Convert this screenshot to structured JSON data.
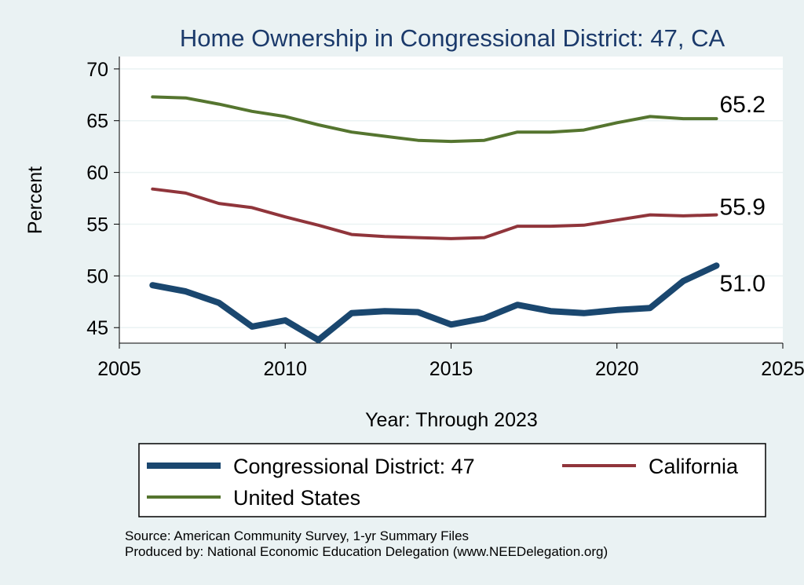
{
  "chart_data": {
    "type": "line",
    "title": "Home Ownership in Congressional District:  47, CA",
    "xlabel": "Year: Through 2023",
    "ylabel": "Percent",
    "xlim": [
      2005,
      2025
    ],
    "ylim": [
      43.5,
      71.2
    ],
    "xticks": [
      2005,
      2010,
      2015,
      2020,
      2025
    ],
    "yticks": [
      45,
      50,
      55,
      60,
      65,
      70
    ],
    "x": [
      2006,
      2007,
      2008,
      2009,
      2010,
      2011,
      2012,
      2013,
      2014,
      2015,
      2016,
      2017,
      2018,
      2019,
      2020,
      2021,
      2022,
      2023
    ],
    "series": [
      {
        "name": "Congressional District:  47",
        "color": "#1a476f",
        "values": [
          49.1,
          48.5,
          47.4,
          45.1,
          45.7,
          43.8,
          46.4,
          46.6,
          46.5,
          45.3,
          45.9,
          47.2,
          46.6,
          46.4,
          46.7,
          46.9,
          49.5,
          51.0
        ],
        "end_label": "51.0"
      },
      {
        "name": "California",
        "color": "#90353b",
        "values": [
          58.4,
          58.0,
          57.0,
          56.6,
          55.7,
          54.9,
          54.0,
          53.8,
          53.7,
          53.6,
          53.7,
          54.8,
          54.8,
          54.9,
          55.4,
          55.9,
          55.8,
          55.9
        ],
        "end_label": "55.9"
      },
      {
        "name": "United States",
        "color": "#55752f",
        "values": [
          67.3,
          67.2,
          66.6,
          65.9,
          65.4,
          64.6,
          63.9,
          63.5,
          63.1,
          63.0,
          63.1,
          63.9,
          63.9,
          64.1,
          64.8,
          65.4,
          65.2,
          65.2
        ],
        "end_label": "65.2"
      }
    ],
    "legend": {
      "position": "bottom",
      "entries": [
        "Congressional District:  47",
        "California",
        "United States"
      ]
    },
    "grid": true
  },
  "footer": {
    "source": "Source: American Community Survey, 1-yr Summary Files",
    "produced_by": "Produced by: National Economic Education Delegation (www.NEEDelegation.org)"
  }
}
